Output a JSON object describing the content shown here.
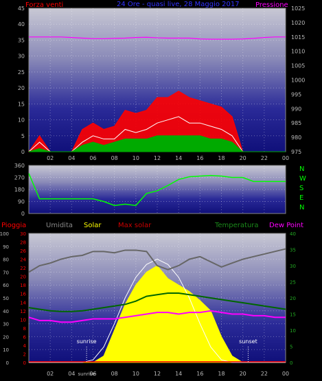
{
  "title": "24 Ore - quasi live, 28 Maggio 2017",
  "colors": {
    "wind": "#ff0000",
    "gust": "#ffffff",
    "wind_avg": "#00aa00",
    "pressure": "#ff00ff",
    "direction": "#00ff00",
    "rain": "#ff0000",
    "humidity": "#666666",
    "solar": "#ffff00",
    "max_solar": "#ffffff",
    "temperature": "#006600",
    "dew_point": "#ff00ff",
    "axis_gray": "#bbbbbb",
    "axis_green": "#22aa22"
  },
  "chart_data": [
    {
      "type": "area",
      "title": "24 Ore - quasi live, 28 Maggio 2017",
      "legend": {
        "left": "Forza venti",
        "right": "Pressione"
      },
      "x_ticks": [
        "02",
        "04",
        "06",
        "08",
        "10",
        "12",
        "14",
        "16",
        "18",
        "20",
        "22",
        "00"
      ],
      "y_left": {
        "ticks": [
          "0",
          "5",
          "10",
          "15",
          "20",
          "25",
          "30",
          "35",
          "40",
          "45"
        ],
        "ylim": [
          0,
          45
        ]
      },
      "y_right": {
        "ticks": [
          "975",
          "980",
          "985",
          "990",
          "995",
          "1000",
          "1005",
          "1010",
          "1015",
          "1020",
          "1025"
        ],
        "ylim": [
          975,
          1025
        ]
      },
      "x": [
        0,
        1,
        2,
        3,
        4,
        5,
        6,
        7,
        8,
        9,
        10,
        11,
        12,
        13,
        14,
        15,
        16,
        17,
        18,
        19,
        20,
        21,
        22,
        23,
        24
      ],
      "series": [
        {
          "name": "Forza venti",
          "unit": "max",
          "values": [
            0,
            5,
            0,
            0,
            0,
            7,
            9,
            7,
            8,
            13,
            12,
            13,
            17,
            17,
            19,
            17,
            16,
            15,
            14,
            11,
            0,
            0,
            0,
            0,
            0
          ]
        },
        {
          "name": "raffica",
          "values": [
            0,
            3,
            0,
            0,
            0,
            3,
            5,
            4,
            4,
            7,
            6,
            7,
            9,
            10,
            11,
            9,
            9,
            8,
            7,
            5,
            0,
            0,
            0,
            0,
            0
          ]
        },
        {
          "name": "media",
          "values": [
            0,
            1,
            0,
            0,
            0,
            2,
            3,
            2,
            3,
            4,
            4,
            4,
            5,
            5,
            5,
            5,
            5,
            4,
            4,
            3,
            0,
            0,
            0,
            0,
            0
          ]
        },
        {
          "name": "Pressione",
          "values": [
            1015,
            1015,
            1015,
            1015,
            1014.8,
            1014.6,
            1014.4,
            1014.4,
            1014.5,
            1014.6,
            1014.8,
            1014.9,
            1014.7,
            1014.6,
            1014.6,
            1014.6,
            1014.3,
            1014.2,
            1014.2,
            1014.2,
            1014.3,
            1014.5,
            1014.8,
            1015,
            1015
          ]
        }
      ]
    },
    {
      "type": "line",
      "legend_right": [
        "N",
        "W",
        "S",
        "E",
        "N"
      ],
      "y_ticks": [
        "360",
        "270",
        "180",
        "90",
        "0"
      ],
      "ylim": [
        0,
        360
      ],
      "x": [
        0,
        1,
        2,
        3,
        4,
        5,
        6,
        7,
        8,
        9,
        10,
        11,
        12,
        13,
        14,
        15,
        16,
        17,
        18,
        19,
        20,
        21,
        22,
        23,
        24
      ],
      "series": [
        {
          "name": "direction",
          "values": [
            300,
            110,
            110,
            110,
            110,
            110,
            110,
            90,
            60,
            70,
            60,
            150,
            170,
            210,
            255,
            275,
            280,
            285,
            280,
            270,
            270,
            240,
            240,
            240,
            240
          ]
        }
      ]
    },
    {
      "type": "area",
      "legend": [
        "Pioggia",
        "Umidita",
        "Solar",
        "Max solar",
        "Temperatura",
        "Dew Point"
      ],
      "x_ticks": [
        "02",
        "04",
        "sunrise",
        "06",
        "08",
        "10",
        "12",
        "14",
        "16",
        "18",
        "20",
        "22",
        "00"
      ],
      "annotations": [
        "sunrise",
        "sunset"
      ],
      "y_humidity": {
        "ticks": [
          "0",
          "10",
          "20",
          "30",
          "40",
          "50",
          "60",
          "70",
          "80",
          "90",
          "100"
        ],
        "ylim": [
          0,
          100
        ]
      },
      "y_rain": {
        "ticks": [
          "0",
          "2",
          "4",
          "6",
          "8",
          "10",
          "12",
          "14",
          "16",
          "18",
          "20",
          "22",
          "24",
          "26",
          "28",
          "30"
        ],
        "ylim": [
          0,
          30
        ]
      },
      "y_temp": {
        "ticks": [
          "0",
          "5",
          "10",
          "15",
          "20",
          "25",
          "30",
          "35",
          "40"
        ],
        "ylim": [
          0,
          40
        ]
      },
      "x": [
        0,
        1,
        2,
        3,
        4,
        5,
        6,
        7,
        8,
        9,
        10,
        11,
        12,
        13,
        14,
        15,
        16,
        17,
        18,
        19,
        20,
        21,
        22,
        23,
        24
      ],
      "series": [
        {
          "name": "Umidita",
          "values": [
            70,
            75,
            77,
            80,
            82,
            83,
            86,
            86,
            85,
            87,
            87,
            86,
            75,
            72,
            75,
            80,
            82,
            78,
            74,
            77,
            80,
            82,
            84,
            86,
            88
          ]
        },
        {
          "name": "Solar",
          "values": [
            0,
            0,
            0,
            0,
            0,
            0,
            0,
            5,
            25,
            45,
            60,
            70,
            75,
            65,
            60,
            55,
            48,
            40,
            20,
            5,
            0,
            0,
            0,
            0,
            0
          ]
        },
        {
          "name": "Max solar",
          "values": [
            0,
            0,
            0,
            0,
            0,
            0,
            2,
            12,
            30,
            50,
            66,
            76,
            80,
            76,
            66,
            50,
            30,
            12,
            2,
            0,
            0,
            0,
            0,
            0,
            0
          ]
        },
        {
          "name": "Temperatura",
          "values": [
            17,
            16.5,
            16,
            15.8,
            15.8,
            16,
            16.5,
            17,
            17.5,
            18,
            19,
            20.5,
            21,
            21.5,
            21.5,
            21,
            20.5,
            20,
            19.5,
            19,
            18.5,
            18,
            17.5,
            17,
            16.5
          ]
        },
        {
          "name": "Dew Point",
          "values": [
            14,
            13,
            13,
            12.5,
            12.5,
            13,
            13.5,
            13.5,
            13.5,
            14,
            14.5,
            15,
            15.5,
            15.5,
            15,
            15.5,
            15.5,
            16,
            15.5,
            15,
            15,
            14.5,
            14.5,
            14,
            14
          ]
        },
        {
          "name": "Pioggia",
          "values": [
            0,
            0,
            0,
            0,
            0,
            0,
            0,
            0,
            0,
            0,
            0,
            0,
            0,
            0,
            0,
            0,
            0,
            0,
            0,
            0,
            0,
            0,
            0,
            0,
            0
          ]
        }
      ]
    }
  ]
}
